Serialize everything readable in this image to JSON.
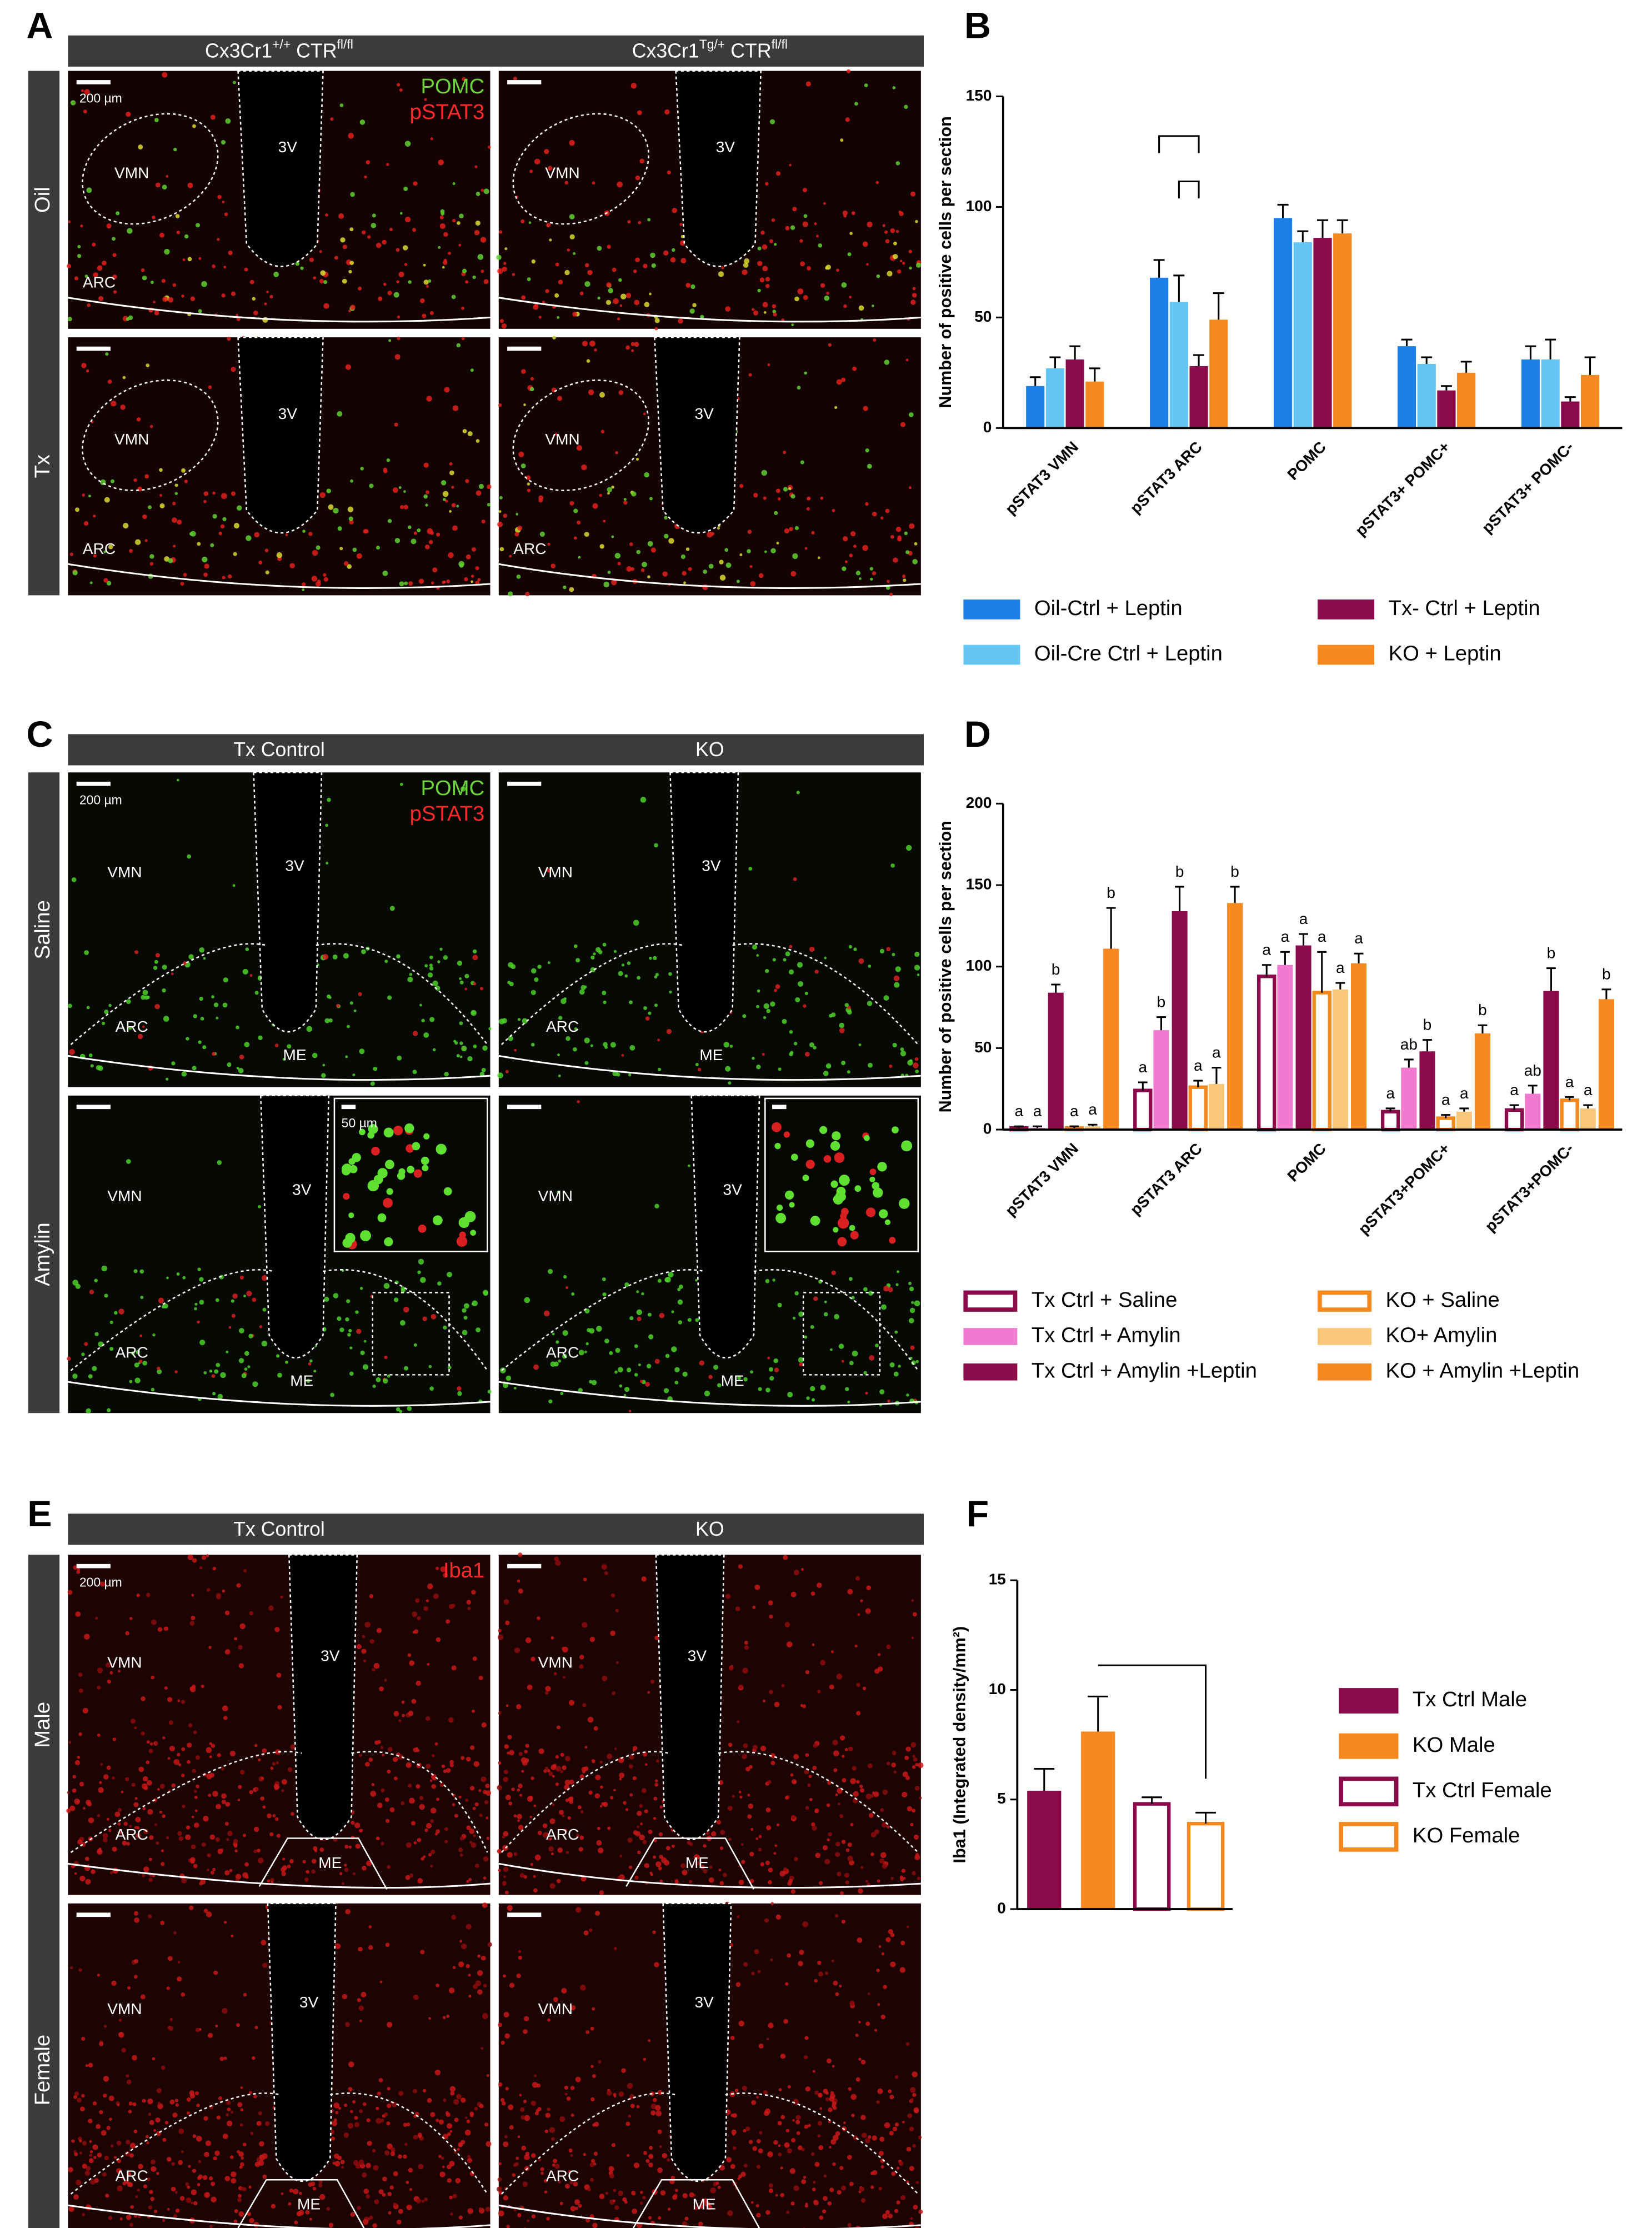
{
  "image_panels": [
    {
      "letter": "A",
      "columns": [
        [
          "Cx3Cr1",
          "+/+",
          " CTR",
          "fl/fl"
        ],
        [
          "Cx3Cr1",
          "Tg/+",
          " CTR",
          "fl/fl"
        ]
      ],
      "rows": [
        "Oil",
        "Tx"
      ],
      "stains": [
        {
          "name": "POMC",
          "color": "#6fd23c"
        },
        {
          "name": "pSTAT3",
          "color": "#ff2a2a"
        }
      ],
      "scale_bar": "200 µm",
      "images": [
        {
          "labels": [
            "VMN",
            "3V",
            "ARC"
          ]
        },
        {
          "labels": [
            "VMN",
            "3V"
          ]
        },
        {
          "labels": [
            "VMN",
            "3V",
            "ARC"
          ]
        },
        {
          "labels": [
            "VMN",
            "3V",
            "ARC"
          ]
        }
      ]
    },
    {
      "letter": "C",
      "columns": [
        [
          "Tx Control"
        ],
        [
          "KO"
        ]
      ],
      "rows": [
        "Saline",
        "Amylin"
      ],
      "stains": [
        {
          "name": "POMC",
          "color": "#6fd23c"
        },
        {
          "name": "pSTAT3",
          "color": "#ff2a2a"
        }
      ],
      "scale_bar": "200 µm",
      "inset_scale_bar": "50 µm",
      "images": [
        {
          "labels": [
            "VMN",
            "3V",
            "ARC",
            "ME"
          ]
        },
        {
          "labels": [
            "VMN",
            "3V",
            "ARC",
            "ME"
          ]
        },
        {
          "labels": [
            "VMN",
            "3V",
            "ARC",
            "ME"
          ]
        },
        {
          "labels": [
            "VMN",
            "3V",
            "ARC",
            "ME"
          ]
        }
      ]
    },
    {
      "letter": "E",
      "columns": [
        [
          "Tx Control"
        ],
        [
          "KO"
        ]
      ],
      "rows": [
        "Male",
        "Female"
      ],
      "stains": [
        {
          "name": "Iba1",
          "color": "#ff2a2a"
        }
      ],
      "scale_bar": "200 µm",
      "images": [
        {
          "labels": [
            "VMN",
            "3V",
            "ARC",
            "ME"
          ]
        },
        {
          "labels": [
            "VMN",
            "3V",
            "ARC",
            "ME"
          ]
        },
        {
          "labels": [
            "VMN",
            "3V",
            "ARC",
            "ME"
          ]
        },
        {
          "labels": [
            "VMN",
            "3V",
            "ARC",
            "ME"
          ]
        }
      ]
    }
  ],
  "chart_data": [
    {
      "type": "bar",
      "panel_letter": "B",
      "y_label": "Number of positive cells per section",
      "categories": [
        "pSTAT3 VMN",
        "pSTAT3 ARC",
        "POMC",
        "pSTAT3+ POMC+",
        "pSTAT3+ POMC-"
      ],
      "ylim": [
        0,
        150
      ],
      "yticks": [
        0,
        50,
        100,
        150
      ],
      "series": [
        {
          "name": "Oil-Ctrl + Leptin",
          "color": "#1f7fe8",
          "style": "filled",
          "values": [
            19,
            68,
            95,
            37,
            31
          ],
          "errors": [
            4,
            8,
            6,
            3,
            6
          ]
        },
        {
          "name": "Oil-Cre Ctrl + Leptin",
          "color": "#63c6f5",
          "style": "filled",
          "values": [
            27,
            57,
            84,
            29,
            31
          ],
          "errors": [
            5,
            12,
            5,
            3,
            9
          ]
        },
        {
          "name": "Tx- Ctrl + Leptin",
          "color": "#8b0a4a",
          "style": "filled",
          "values": [
            31,
            28,
            86,
            17,
            12
          ],
          "errors": [
            6,
            5,
            8,
            2,
            2
          ]
        },
        {
          "name": "KO + Leptin",
          "color": "#f5891f",
          "style": "filled",
          "values": [
            21,
            49,
            88,
            25,
            24
          ],
          "errors": [
            6,
            12,
            6,
            5,
            8
          ]
        }
      ]
    },
    {
      "type": "bar",
      "panel_letter": "D",
      "y_label": "Number of positive cells per section",
      "categories": [
        "pSTAT3 VMN",
        "pSTAT3 ARC",
        "POMC",
        "pSTAT3+POMC+",
        "pSTAT3+POMC-"
      ],
      "ylim": [
        0,
        200
      ],
      "yticks": [
        0,
        50,
        100,
        150,
        200
      ],
      "series": [
        {
          "name": "Tx Ctrl + Saline",
          "color": "#8b0a4a",
          "style": "outline",
          "values": [
            1,
            24,
            94,
            11,
            12
          ],
          "errors": [
            1,
            5,
            7,
            2,
            3
          ],
          "letters": [
            "a",
            "a",
            "a",
            "a",
            "a"
          ]
        },
        {
          "name": "Tx Ctrl + Amylin",
          "color": "#f07ad0",
          "style": "filled",
          "values": [
            1,
            61,
            101,
            38,
            22
          ],
          "errors": [
            1,
            8,
            8,
            5,
            5
          ],
          "letters": [
            "a",
            "b",
            "a",
            "ab",
            "ab"
          ]
        },
        {
          "name": "Tx Ctrl + Amylin +Leptin",
          "color": "#8b0a4a",
          "style": "filled",
          "values": [
            84,
            134,
            113,
            48,
            85
          ],
          "errors": [
            5,
            15,
            7,
            7,
            14
          ],
          "letters": [
            "b",
            "b",
            "a",
            "b",
            "b"
          ]
        },
        {
          "name": "KO + Saline",
          "color": "#f5891f",
          "style": "outline",
          "values": [
            1,
            26,
            84,
            7,
            18
          ],
          "errors": [
            1,
            4,
            25,
            2,
            2
          ],
          "letters": [
            "a",
            "a",
            "a",
            "a",
            "a"
          ]
        },
        {
          "name": "KO+ Amylin",
          "color": "#f9c87a",
          "style": "filled",
          "values": [
            2,
            28,
            86,
            11,
            13
          ],
          "errors": [
            1,
            10,
            4,
            2,
            2
          ],
          "letters": [
            "a",
            "a",
            "a",
            "a",
            "a"
          ]
        },
        {
          "name": "KO + Amylin +Leptin",
          "color": "#f5891f",
          "style": "filled",
          "values": [
            111,
            139,
            102,
            59,
            80
          ],
          "errors": [
            25,
            10,
            6,
            5,
            6
          ],
          "letters": [
            "b",
            "b",
            "a",
            "b",
            "b"
          ]
        }
      ]
    },
    {
      "type": "bar",
      "panel_letter": "F",
      "y_label": "Iba1 (Integrated density/mm²)",
      "categories": [
        "Tx Ctrl  Male",
        "KO Male",
        "Tx Ctrl Female",
        "KO Female"
      ],
      "colors": [
        "#8b0a4a",
        "#f5891f",
        "#8b0a4a",
        "#f5891f"
      ],
      "styles": [
        "filled",
        "filled",
        "outline",
        "outline"
      ],
      "values": [
        5.4,
        8.1,
        4.8,
        3.9
      ],
      "errors": [
        1.0,
        1.6,
        0.3,
        0.5
      ],
      "ylim": [
        0,
        15
      ],
      "yticks": [
        0,
        5,
        10,
        15
      ]
    }
  ]
}
